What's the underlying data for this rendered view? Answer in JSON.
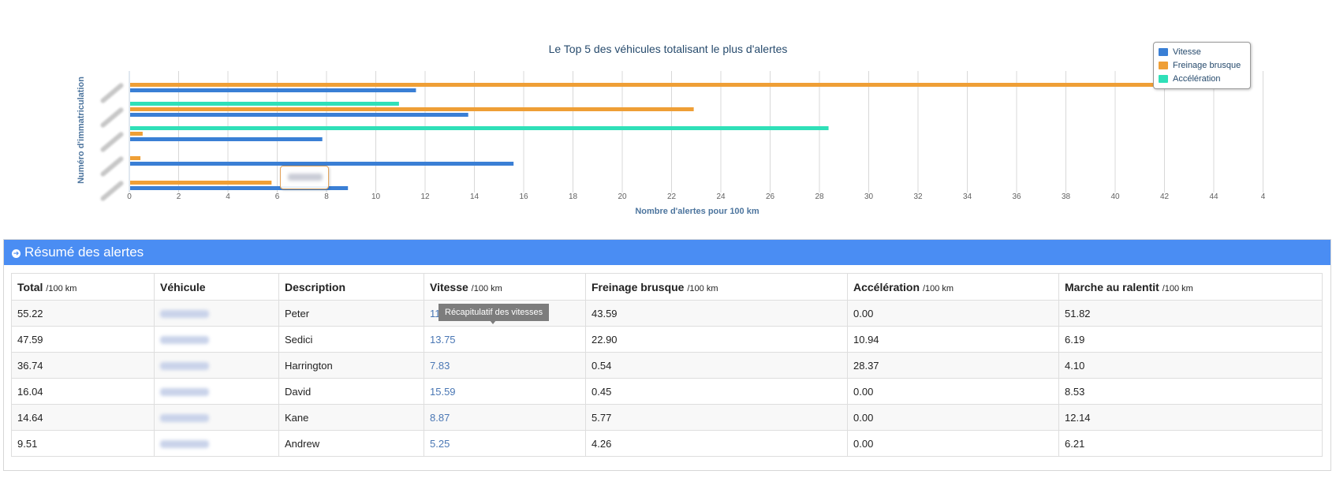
{
  "chart_data": {
    "type": "bar",
    "orientation": "horizontal",
    "title": "Le Top 5 des véhicules totalisant le plus d'alertes",
    "xlabel": "Nombre d'alertes pour 100 km",
    "ylabel": "Numéro d'immatriculation",
    "xlim": [
      0,
      46
    ],
    "x_ticks": [
      "0",
      "2",
      "4",
      "6",
      "8",
      "10",
      "12",
      "14",
      "16",
      "18",
      "20",
      "22",
      "24",
      "26",
      "28",
      "30",
      "32",
      "34",
      "36",
      "38",
      "40",
      "42",
      "44",
      "4"
    ],
    "grid": "vertical",
    "legend_placement": "top-right",
    "categories": [
      "",
      "",
      "",
      "",
      ""
    ],
    "series": [
      {
        "name": "Vitesse",
        "color": "#3a7fd5",
        "values": [
          11.63,
          13.75,
          7.83,
          15.59,
          8.87
        ]
      },
      {
        "name": "Freinage brusque",
        "color": "#ef9f36",
        "values": [
          43.59,
          22.9,
          0.54,
          0.45,
          5.77
        ]
      },
      {
        "name": "Accélération",
        "color": "#2fe0b8",
        "values": [
          0.0,
          10.94,
          28.37,
          0.0,
          0.0
        ]
      }
    ]
  },
  "summary": {
    "title": "Résumé des alertes",
    "unit": "/100 km",
    "columns": [
      {
        "label": "Total",
        "unit": "/100 km"
      },
      {
        "label": "Véhicule",
        "unit": ""
      },
      {
        "label": "Description",
        "unit": ""
      },
      {
        "label": "Vitesse",
        "unit": "/100 km"
      },
      {
        "label": "Freinage brusque",
        "unit": "/100 km"
      },
      {
        "label": "Accélération",
        "unit": "/100 km"
      },
      {
        "label": "Marche au ralentit",
        "unit": "/100 km"
      }
    ],
    "rows": [
      {
        "total": "55.22",
        "description": "Peter",
        "vitesse": "11.63",
        "freinage": "43.59",
        "acceleration": "0.00",
        "ralenti": "51.82"
      },
      {
        "total": "47.59",
        "description": "Sedici",
        "vitesse": "13.75",
        "freinage": "22.90",
        "acceleration": "10.94",
        "ralenti": "6.19"
      },
      {
        "total": "36.74",
        "description": "Harrington",
        "vitesse": "7.83",
        "freinage": "0.54",
        "acceleration": "28.37",
        "ralenti": "4.10"
      },
      {
        "total": "16.04",
        "description": "David",
        "vitesse": "15.59",
        "freinage": "0.45",
        "acceleration": "0.00",
        "ralenti": "8.53"
      },
      {
        "total": "14.64",
        "description": "Kane",
        "vitesse": "8.87",
        "freinage": "5.77",
        "acceleration": "0.00",
        "ralenti": "12.14"
      },
      {
        "total": "9.51",
        "description": "Andrew",
        "vitesse": "5.25",
        "freinage": "4.26",
        "acceleration": "0.00",
        "ralenti": "6.21"
      }
    ],
    "speed_tooltip": "Récapitulatif des vitesses"
  },
  "icons": {
    "panel_heading": "circle-arrow-icon"
  }
}
